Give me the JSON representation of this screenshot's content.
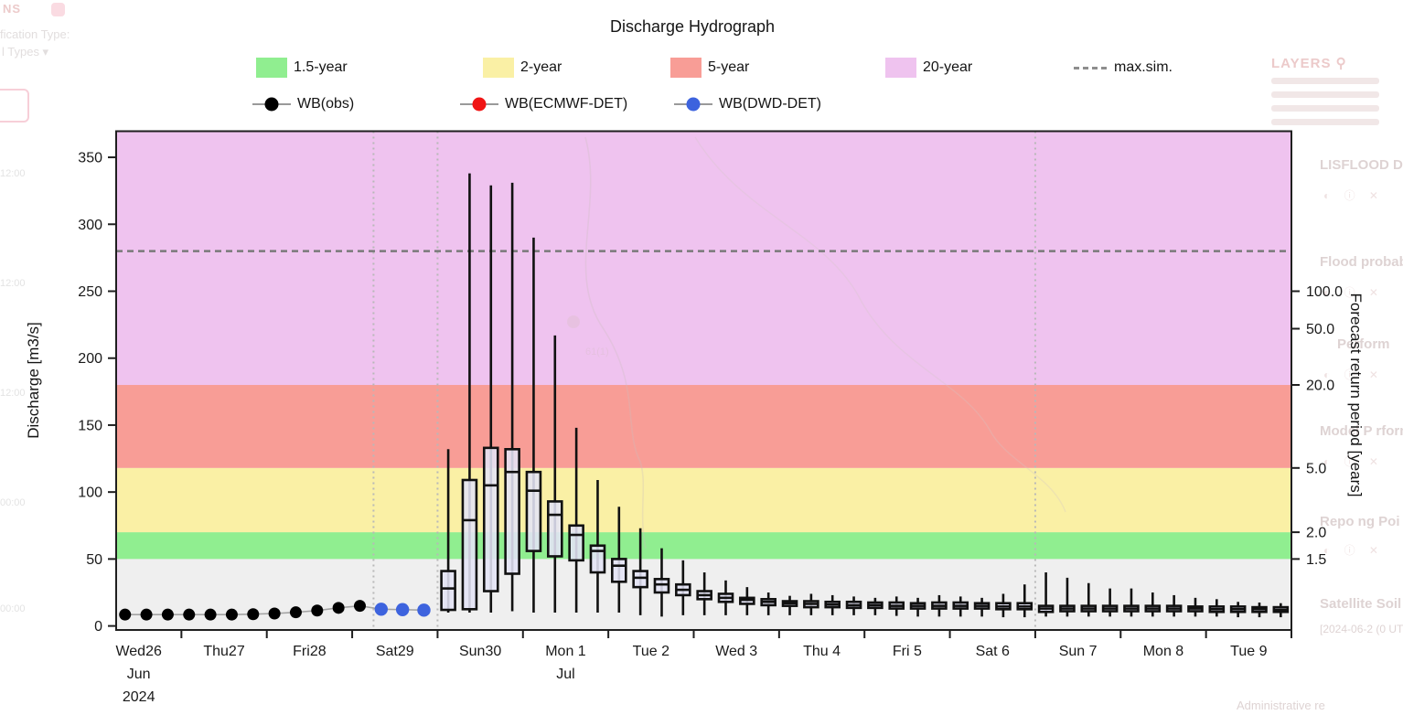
{
  "chart_data": {
    "type": "boxplot",
    "title": "Discharge Hydrograph",
    "ylabel": "Discharge [m3/s]",
    "y2label": "Forecast return period [years]",
    "ylim": [
      -3,
      369.5
    ],
    "xlim_days": [
      0.2357,
      14
    ],
    "plot_bg": "#EFEFEF",
    "x_axis": {
      "day_ticks": [
        1,
        2,
        3,
        4,
        5,
        6,
        7,
        8,
        9,
        10,
        11,
        12,
        13,
        14
      ],
      "labels": [
        {
          "t": 0.5,
          "lines": [
            "Wed26",
            "Jun",
            "2024"
          ]
        },
        {
          "t": 1.5,
          "lines": [
            "Thu27"
          ]
        },
        {
          "t": 2.5,
          "lines": [
            "Fri28"
          ]
        },
        {
          "t": 3.5,
          "lines": [
            "Sat29"
          ]
        },
        {
          "t": 4.5,
          "lines": [
            "Sun30"
          ]
        },
        {
          "t": 5.5,
          "lines": [
            "Mon 1",
            "Jul"
          ]
        },
        {
          "t": 6.5,
          "lines": [
            "Tue 2"
          ]
        },
        {
          "t": 7.5,
          "lines": [
            "Wed 3"
          ]
        },
        {
          "t": 8.5,
          "lines": [
            "Thu 4"
          ]
        },
        {
          "t": 9.5,
          "lines": [
            "Fri 5"
          ]
        },
        {
          "t": 10.5,
          "lines": [
            "Sat 6"
          ]
        },
        {
          "t": 11.5,
          "lines": [
            "Sun 7"
          ]
        },
        {
          "t": 12.5,
          "lines": [
            "Mon 8"
          ]
        },
        {
          "t": 13.5,
          "lines": [
            "Tue 9"
          ]
        }
      ]
    },
    "y_axis": {
      "ticks": [
        0,
        50,
        100,
        150,
        200,
        250,
        300,
        350
      ]
    },
    "y2_axis": {
      "ticks": [
        {
          "value": 50,
          "label": "1.5"
        },
        {
          "value": 70,
          "label": "2.0"
        },
        {
          "value": 118,
          "label": "5.0"
        },
        {
          "value": 180,
          "label": "20.0"
        },
        {
          "value": 222,
          "label": "50.0"
        },
        {
          "value": 250,
          "label": "100.0"
        }
      ]
    },
    "bands": [
      {
        "label": "1.5-year",
        "from": 50,
        "to": 70,
        "color": "#90EE90"
      },
      {
        "label": "2-year",
        "from": 70,
        "to": 118,
        "color": "#FAF0A5"
      },
      {
        "label": "5-year",
        "from": 118,
        "to": 180,
        "color": "#F89D96"
      },
      {
        "label": "20-year",
        "from": 180,
        "to": 369.5,
        "color": "#EFC3EF"
      }
    ],
    "max_sim": {
      "label": "max.sim.",
      "value": 280,
      "color": "#7a7a7a"
    },
    "vlines_days": [
      3.25,
      4.0,
      11.0
    ],
    "observed": {
      "label": "WB(obs)",
      "color": "#000000",
      "t_start": 0.34,
      "t_step": 0.25,
      "values": [
        8.5,
        8.5,
        8.5,
        8.5,
        8.5,
        8.5,
        8.8,
        9.3,
        10.2,
        11.5,
        13.5,
        15
      ]
    },
    "ecmwf_det": {
      "label": "WB(ECMWF-DET)",
      "color": "#F01414"
    },
    "dwd_det": {
      "label": "WB(DWD-DET)",
      "color": "#3D63DE",
      "t_start": 3.34,
      "t_step": 0.25,
      "values": [
        12.5,
        12.2,
        11.8
      ]
    },
    "ensemble_boxes": {
      "fill": "#E4E4F6",
      "t_start": 4.125,
      "t_step": 0.25,
      "values": [
        [
          10,
          12,
          28,
          41,
          132
        ],
        [
          10,
          12.5,
          79,
          109,
          338
        ],
        [
          10,
          26,
          105,
          133,
          329
        ],
        [
          11,
          39,
          115,
          132,
          331
        ],
        [
          10,
          56,
          101,
          115,
          290
        ],
        [
          10,
          52,
          83,
          93,
          217
        ],
        [
          10,
          49,
          68,
          75,
          148
        ],
        [
          10,
          40,
          56,
          60,
          109
        ],
        [
          10,
          33,
          45,
          50,
          89
        ],
        [
          8,
          29,
          36,
          41,
          73
        ],
        [
          7,
          25,
          31,
          35,
          58
        ],
        [
          8,
          23,
          27,
          31,
          49
        ],
        [
          8,
          20,
          23,
          26,
          40
        ],
        [
          8,
          18,
          21,
          24,
          34
        ],
        [
          8,
          16.5,
          19.5,
          21,
          29
        ],
        [
          8,
          15.5,
          18,
          20,
          25
        ],
        [
          8,
          15,
          17,
          18.5,
          22.5
        ],
        [
          8,
          14,
          16.5,
          18.5,
          24
        ],
        [
          8,
          14,
          16,
          18,
          23
        ],
        [
          8,
          13.5,
          15.5,
          18,
          22
        ],
        [
          8,
          13.5,
          15.5,
          17.5,
          21
        ],
        [
          7.5,
          13,
          15,
          17.5,
          22
        ],
        [
          7,
          13,
          15,
          17,
          21
        ],
        [
          7,
          13,
          15,
          17.5,
          23
        ],
        [
          7,
          13,
          15,
          17.5,
          22
        ],
        [
          7,
          13,
          15,
          17,
          21
        ],
        [
          6.5,
          12.5,
          14.5,
          17,
          24
        ],
        [
          6.5,
          12.5,
          14.5,
          17,
          31
        ],
        [
          7,
          10.5,
          13,
          15,
          40
        ],
        [
          7,
          11,
          13,
          15,
          36
        ],
        [
          7,
          11,
          13,
          15,
          32
        ],
        [
          7,
          11,
          13,
          15,
          28
        ],
        [
          7,
          11,
          13,
          15,
          28
        ],
        [
          7,
          11,
          13,
          15,
          25
        ],
        [
          7,
          11,
          13,
          15,
          23
        ],
        [
          7,
          11,
          13,
          14.5,
          21
        ],
        [
          7,
          10.5,
          12.5,
          14.5,
          20
        ],
        [
          6.5,
          10.5,
          12.5,
          14.5,
          18
        ],
        [
          6.5,
          10.5,
          12.5,
          14,
          17.5
        ],
        [
          6.5,
          10.5,
          12,
          14,
          17
        ]
      ]
    }
  },
  "underlay": {
    "top_left_fragment": "NS",
    "left_items": [
      "fication Type:",
      "l Types"
    ],
    "left_caret": "▾",
    "left_times": [
      "12:00",
      "12:00",
      "12:00",
      "00:00",
      "00:00"
    ],
    "map_label": "61(1)",
    "layers_panel": {
      "heading": "LAYERS",
      "pin_icon": "⚲",
      "row_icons": "◐ ⓘ ✕",
      "items": [
        "LISFLOOD Draina",
        "Flood probability",
        "Perform",
        "Model P rforman",
        "Repo ng Poi",
        "Satellite Soil Moi",
        "[2024-06-2  (0  UT"
      ]
    },
    "bottom_right_fragment": "Administrative re"
  }
}
